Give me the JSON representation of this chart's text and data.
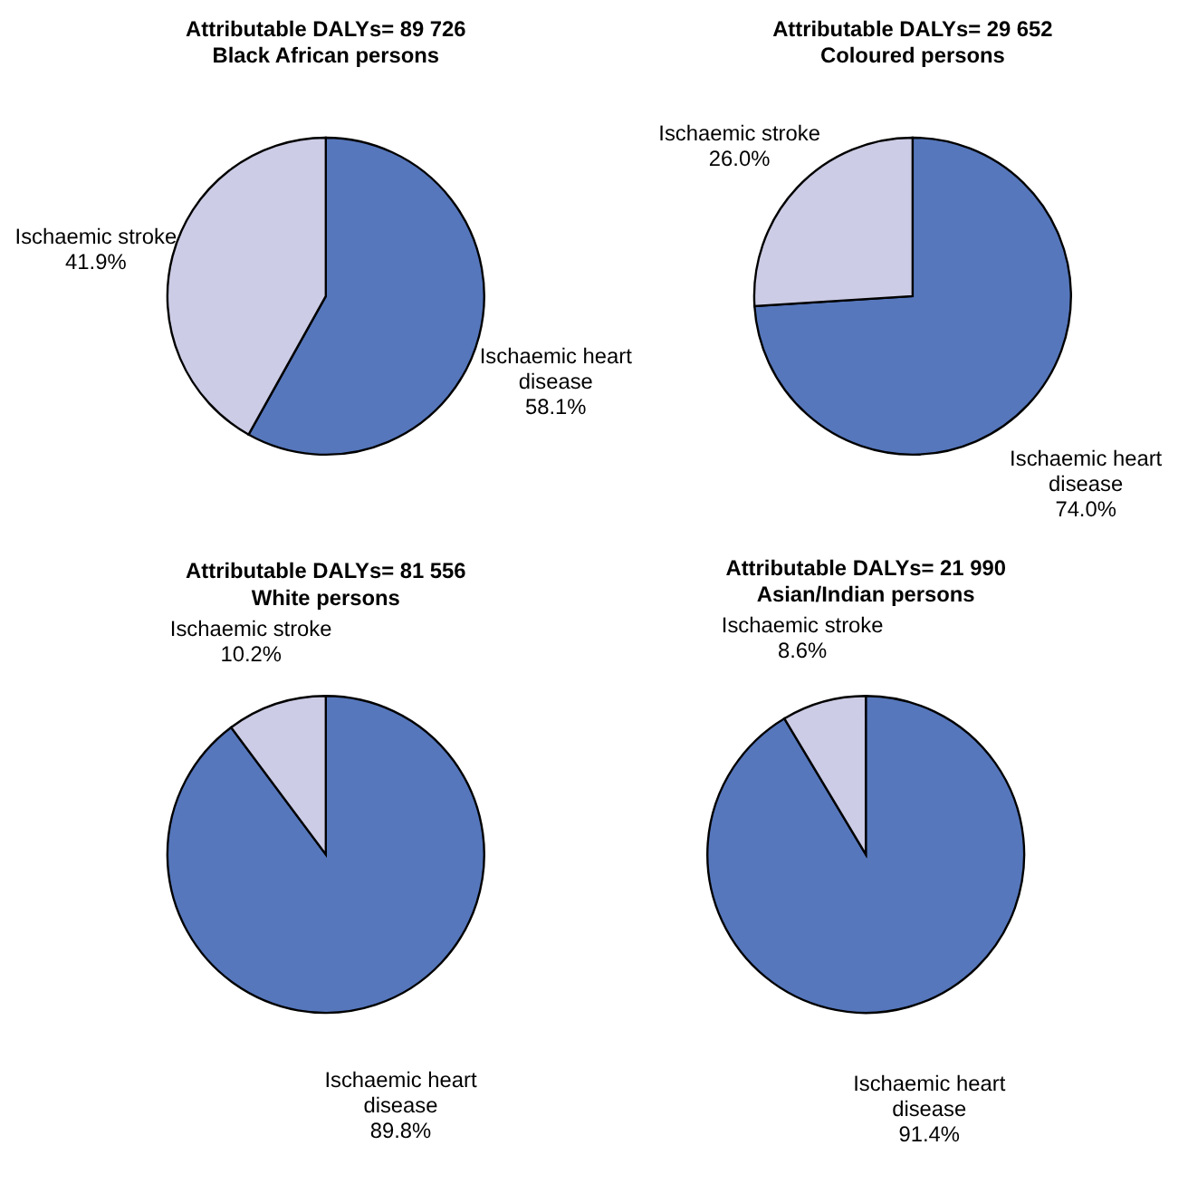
{
  "chart_data": [
    {
      "type": "pie",
      "title": "Attributable DALYs= 89 726",
      "subtitle": "Black African persons",
      "categories": [
        "Ischaemic heart disease",
        "Ischaemic stroke"
      ],
      "values": [
        58.1,
        41.9
      ],
      "value_labels": [
        "58.1%",
        "41.9%"
      ],
      "colors": [
        "#5677bc",
        "#cccce6"
      ],
      "legend": false
    },
    {
      "type": "pie",
      "title": "Attributable DALYs= 29 652",
      "subtitle": "Coloured persons",
      "categories": [
        "Ischaemic heart disease",
        "Ischaemic stroke"
      ],
      "values": [
        74.0,
        26.0
      ],
      "value_labels": [
        "74.0%",
        "26.0%"
      ],
      "colors": [
        "#5677bc",
        "#cccce6"
      ],
      "legend": false
    },
    {
      "type": "pie",
      "title": "Attributable DALYs= 81 556",
      "subtitle": "White persons",
      "categories": [
        "Ischaemic heart disease",
        "Ischaemic stroke"
      ],
      "values": [
        89.8,
        10.2
      ],
      "value_labels": [
        "89.8%",
        "10.2%"
      ],
      "colors": [
        "#5677bc",
        "#cccce6"
      ],
      "legend": false
    },
    {
      "type": "pie",
      "title": "Attributable DALYs= 21 990",
      "subtitle": "Asian/Indian persons",
      "categories": [
        "Ischaemic heart disease",
        "Ischaemic stroke"
      ],
      "values": [
        91.4,
        8.6
      ],
      "value_labels": [
        "91.4%",
        "8.6%"
      ],
      "colors": [
        "#5677bc",
        "#cccce6"
      ],
      "legend": false
    }
  ]
}
